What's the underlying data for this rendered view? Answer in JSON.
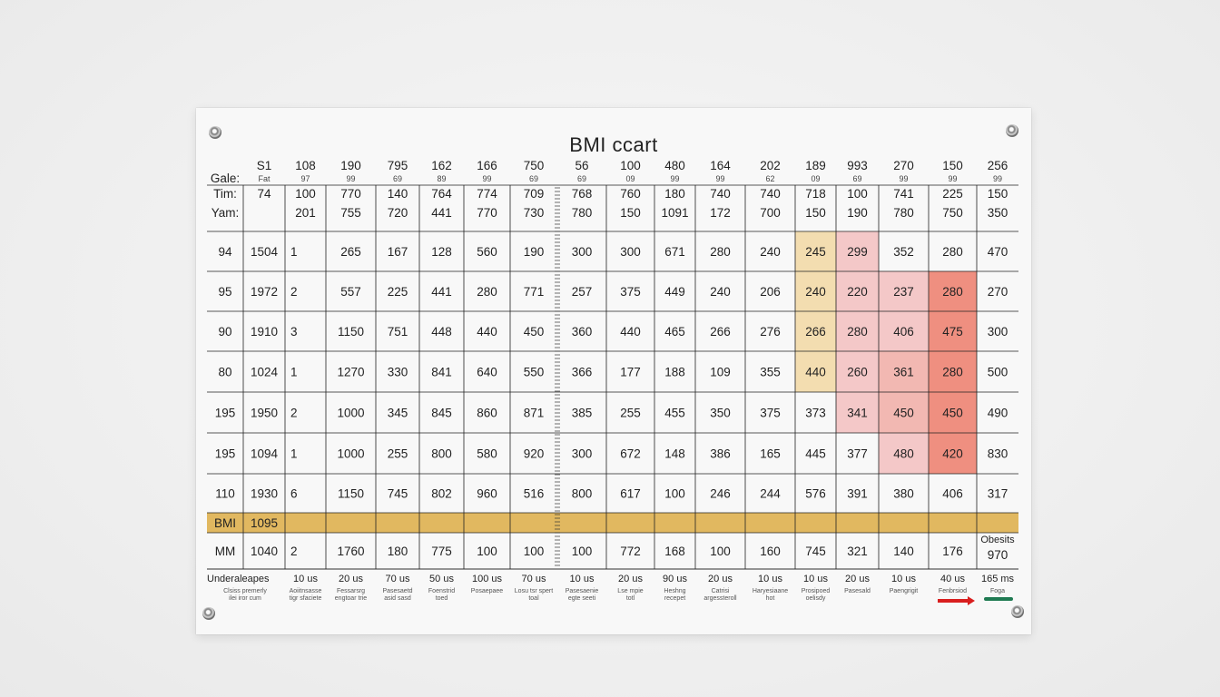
{
  "title": "BMI ccart",
  "header": {
    "corner_label": "Gale:",
    "col_top": [
      "S1",
      "108",
      "190",
      "795",
      "162",
      "166",
      "750",
      "56",
      "100",
      "480",
      "164",
      "202",
      "189",
      "993",
      "270",
      "150",
      "256"
    ],
    "col_sub": [
      "Fat",
      "97",
      "99",
      "69",
      "89",
      "99",
      "69",
      "69",
      "09",
      "99",
      "99",
      "62",
      "09",
      "69",
      "99",
      "99",
      "99"
    ]
  },
  "sub_rows": [
    {
      "label": "Tim:",
      "cells": [
        "74",
        "100",
        "770",
        "140",
        "764",
        "774",
        "709",
        "768",
        "760",
        "180",
        "740",
        "740",
        "718",
        "100",
        "741",
        "225",
        "150"
      ]
    },
    {
      "label": "Yam:",
      "cells": [
        "",
        "201",
        "755",
        "720",
        "441",
        "770",
        "730",
        "780",
        "150",
        "1091",
        "172",
        "700",
        "150",
        "190",
        "780",
        "750",
        "350"
      ]
    }
  ],
  "rows": [
    {
      "label": "94",
      "cells": [
        "1504",
        "1",
        "265",
        "167",
        "128",
        "560",
        "190",
        "300",
        "300",
        "671",
        "280",
        "240",
        "245",
        "299",
        "352",
        "280",
        "470"
      ]
    },
    {
      "label": "95",
      "cells": [
        "1972",
        "2",
        "557",
        "225",
        "441",
        "280",
        "771",
        "257",
        "375",
        "449",
        "240",
        "206",
        "240",
        "220",
        "237",
        "280",
        "270"
      ]
    },
    {
      "label": "90",
      "cells": [
        "1910",
        "3",
        "1150",
        "751",
        "448",
        "440",
        "450",
        "360",
        "440",
        "465",
        "266",
        "276",
        "266",
        "280",
        "406",
        "475",
        "300"
      ]
    },
    {
      "label": "80",
      "cells": [
        "1024",
        "1",
        "1270",
        "330",
        "841",
        "640",
        "550",
        "366",
        "177",
        "188",
        "109",
        "355",
        "440",
        "260",
        "361",
        "280",
        "500"
      ]
    },
    {
      "label": "195",
      "cells": [
        "1950",
        "2",
        "1000",
        "345",
        "845",
        "860",
        "871",
        "385",
        "255",
        "455",
        "350",
        "375",
        "373",
        "341",
        "450",
        "450",
        "490"
      ]
    },
    {
      "label": "195",
      "cells": [
        "1094",
        "1",
        "1000",
        "255",
        "800",
        "580",
        "920",
        "300",
        "672",
        "148",
        "386",
        "165",
        "445",
        "377",
        "480",
        "420",
        "830"
      ]
    },
    {
      "label": "110",
      "cells": [
        "1930",
        "6",
        "1150",
        "745",
        "802",
        "960",
        "516",
        "800",
        "617",
        "100",
        "246",
        "244",
        "576",
        "391",
        "380",
        "406",
        "317"
      ]
    }
  ],
  "highlight_row": {
    "label": "BMI",
    "value": "1095"
  },
  "last_row": {
    "label": "MM",
    "cells": [
      "1040",
      "2",
      "1760",
      "180",
      "775",
      "100",
      "100",
      "100",
      "772",
      "168",
      "100",
      "160",
      "745",
      "321",
      "140",
      "176",
      "970"
    ],
    "note": "Obesits"
  },
  "legend_row": {
    "label": "Underaleapes",
    "label_sub": [
      "Clsiss premerly",
      "ilei iror cum"
    ],
    "items": [
      {
        "cap": "10 us",
        "sub": [
          "Aoiitnsasse",
          "tigr sfaciete"
        ]
      },
      {
        "cap": "20 us",
        "sub": [
          "Fessarsrg",
          "engtoar trie"
        ]
      },
      {
        "cap": "70 us",
        "sub": [
          "Pasesaetd",
          "asid sasd"
        ]
      },
      {
        "cap": "50 us",
        "sub": [
          "Foenstrid",
          "toed"
        ]
      },
      {
        "cap": "100 us",
        "sub": [
          "Posaepaee",
          ""
        ]
      },
      {
        "cap": "70 us",
        "sub": [
          "Losu tsr spert",
          "toal"
        ]
      },
      {
        "cap": "10 us",
        "sub": [
          "Pasesaenie",
          "egte seeti"
        ]
      },
      {
        "cap": "20 us",
        "sub": [
          "Lse mpie",
          "totl"
        ]
      },
      {
        "cap": "90 us",
        "sub": [
          "Heshng",
          "recepet"
        ]
      },
      {
        "cap": "20 us",
        "sub": [
          "Catrisi",
          "argessteroll"
        ]
      },
      {
        "cap": "10 us",
        "sub": [
          "Haryesiaane",
          "hot"
        ]
      },
      {
        "cap": "10 us",
        "sub": [
          "Prosipoed",
          "oelisdy"
        ]
      },
      {
        "cap": "20 us",
        "sub": [
          "Pasesald",
          ""
        ]
      },
      {
        "cap": "10 us",
        "sub": [
          "Paengrigit",
          ""
        ]
      },
      {
        "cap": "40 us",
        "sub": [
          "Fenbrsiod",
          ""
        ]
      },
      {
        "cap": "165 ms",
        "sub": [
          "Foga",
          ""
        ]
      }
    ]
  },
  "colors": {
    "overweight": "#f3ddb0",
    "obese_light": "#f4c8c8",
    "obese_mid": "#f2b8b2",
    "obese_high": "#ef8f80",
    "bmi_band": "#e1b860",
    "arrow_red": "#d91e1e",
    "arrow_green": "#1f7a52",
    "grid": "#222222"
  }
}
